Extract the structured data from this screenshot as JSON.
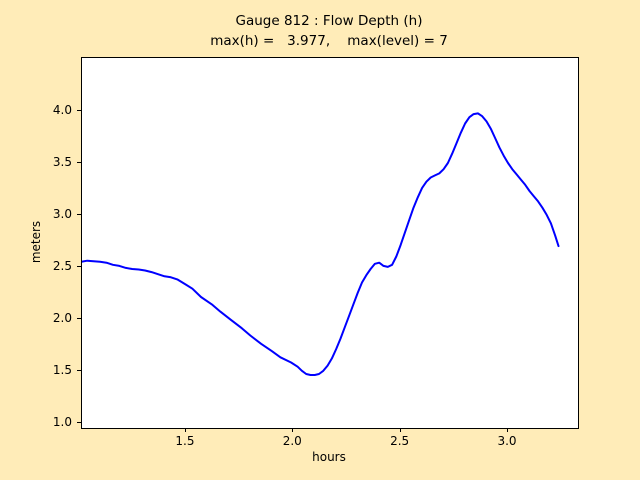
{
  "figure": {
    "background_color": "#ffecb8",
    "plot_background_color": "#ffffff",
    "axis_color": "#000000"
  },
  "chart": {
    "title": "Gauge 812 : Flow Depth (h)",
    "subtitle": "max(h) =   3.977,    max(level) = 7",
    "xlabel": "hours",
    "ylabel": "meters"
  },
  "chart_data": {
    "type": "line",
    "title": "Gauge 812 : Flow Depth (h)",
    "subtitle": "max(h) =   3.977,    max(level) = 7",
    "xlabel": "hours",
    "ylabel": "meters",
    "max_h": 3.977,
    "max_level": 7,
    "grid": false,
    "legend_position": "none",
    "xlim": [
      1.016,
      3.326
    ],
    "ylim": [
      0.95,
      4.51
    ],
    "x_ticks": [
      1.5,
      2.0,
      2.5,
      3.0
    ],
    "y_ticks": [
      1.0,
      1.5,
      2.0,
      2.5,
      3.0,
      3.5,
      4.0
    ],
    "tick_decimals": 1,
    "series": [
      {
        "name": "flow depth (h)",
        "color": "#0000ff",
        "line_width": 2,
        "x": [
          1.016,
          1.04,
          1.07,
          1.1,
          1.13,
          1.16,
          1.19,
          1.22,
          1.25,
          1.28,
          1.31,
          1.34,
          1.37,
          1.4,
          1.43,
          1.46,
          1.5,
          1.53,
          1.57,
          1.62,
          1.66,
          1.71,
          1.76,
          1.8,
          1.85,
          1.9,
          1.94,
          1.99,
          2.02,
          2.04,
          2.06,
          2.08,
          2.1,
          2.12,
          2.14,
          2.16,
          2.18,
          2.2,
          2.22,
          2.24,
          2.26,
          2.28,
          2.3,
          2.32,
          2.34,
          2.36,
          2.38,
          2.4,
          2.42,
          2.44,
          2.46,
          2.48,
          2.5,
          2.52,
          2.54,
          2.56,
          2.58,
          2.6,
          2.62,
          2.64,
          2.66,
          2.68,
          2.7,
          2.72,
          2.74,
          2.76,
          2.78,
          2.8,
          2.82,
          2.84,
          2.86,
          2.88,
          2.9,
          2.92,
          2.94,
          2.96,
          2.98,
          3.0,
          3.02,
          3.04,
          3.06,
          3.08,
          3.1,
          3.12,
          3.14,
          3.16,
          3.18,
          3.2,
          3.22,
          3.235
        ],
        "y": [
          2.55,
          2.56,
          2.555,
          2.55,
          2.54,
          2.52,
          2.51,
          2.49,
          2.48,
          2.475,
          2.465,
          2.45,
          2.43,
          2.41,
          2.4,
          2.38,
          2.33,
          2.29,
          2.21,
          2.14,
          2.07,
          1.99,
          1.91,
          1.84,
          1.76,
          1.69,
          1.63,
          1.58,
          1.54,
          1.5,
          1.47,
          1.46,
          1.46,
          1.47,
          1.5,
          1.55,
          1.62,
          1.71,
          1.81,
          1.92,
          2.03,
          2.14,
          2.25,
          2.35,
          2.42,
          2.48,
          2.53,
          2.54,
          2.51,
          2.5,
          2.52,
          2.6,
          2.71,
          2.83,
          2.95,
          3.07,
          3.17,
          3.26,
          3.32,
          3.36,
          3.38,
          3.4,
          3.44,
          3.5,
          3.59,
          3.69,
          3.79,
          3.88,
          3.94,
          3.97,
          3.977,
          3.95,
          3.9,
          3.83,
          3.74,
          3.65,
          3.57,
          3.5,
          3.44,
          3.39,
          3.34,
          3.29,
          3.23,
          3.18,
          3.13,
          3.07,
          3.0,
          2.92,
          2.8,
          2.7
        ]
      }
    ]
  }
}
